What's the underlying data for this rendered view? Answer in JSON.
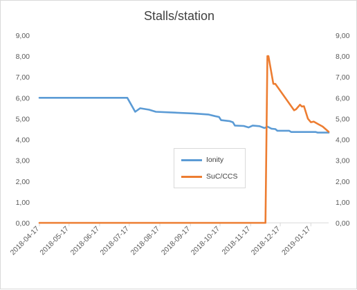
{
  "chart_data": {
    "type": "line",
    "title": "Stalls/station",
    "xlabel": "",
    "ylabel": "",
    "ylim": [
      0,
      9
    ],
    "y_ticks": [
      "0,00",
      "1,00",
      "2,00",
      "3,00",
      "4,00",
      "5,00",
      "6,00",
      "7,00",
      "8,00",
      "9,00"
    ],
    "x_tick_labels": [
      "2018-04-17",
      "2018-05-17",
      "2018-06-17",
      "2018-07-17",
      "2018-08-17",
      "2018-09-17",
      "2018-10-17",
      "2018-11-17",
      "2018-12-17",
      "2019-01-17"
    ],
    "x_range": [
      "2018-04-17",
      "2019-02-04"
    ],
    "grid": false,
    "legend_position": "center-right",
    "series": [
      {
        "name": "Ionity",
        "color": "#5b9bd5",
        "points": [
          [
            "2018-04-17",
            6.0
          ],
          [
            "2018-07-15",
            6.0
          ],
          [
            "2018-07-23",
            5.33
          ],
          [
            "2018-07-28",
            5.5
          ],
          [
            "2018-08-06",
            5.43
          ],
          [
            "2018-08-13",
            5.33
          ],
          [
            "2018-09-01",
            5.29
          ],
          [
            "2018-09-20",
            5.25
          ],
          [
            "2018-10-05",
            5.2
          ],
          [
            "2018-10-12",
            5.12
          ],
          [
            "2018-10-16",
            5.08
          ],
          [
            "2018-10-18",
            4.93
          ],
          [
            "2018-10-27",
            4.88
          ],
          [
            "2018-10-30",
            4.83
          ],
          [
            "2018-11-01",
            4.67
          ],
          [
            "2018-11-10",
            4.65
          ],
          [
            "2018-11-15",
            4.58
          ],
          [
            "2018-11-19",
            4.67
          ],
          [
            "2018-11-26",
            4.64
          ],
          [
            "2018-12-01",
            4.55
          ],
          [
            "2018-12-04",
            4.62
          ],
          [
            "2018-12-08",
            4.52
          ],
          [
            "2018-12-12",
            4.5
          ],
          [
            "2018-12-14",
            4.42
          ],
          [
            "2018-12-26",
            4.42
          ],
          [
            "2018-12-28",
            4.36
          ],
          [
            "2019-01-22",
            4.36
          ],
          [
            "2019-01-24",
            4.33
          ],
          [
            "2019-02-04",
            4.33
          ]
        ]
      },
      {
        "name": "SuC/CCS",
        "color": "#ed7d31",
        "points": [
          [
            "2018-04-17",
            0.0
          ],
          [
            "2018-12-02",
            0.0
          ],
          [
            "2018-12-04",
            8.0
          ],
          [
            "2018-12-05",
            8.0
          ],
          [
            "2018-12-10",
            6.67
          ],
          [
            "2018-12-12",
            6.67
          ],
          [
            "2018-12-31",
            5.4
          ],
          [
            "2019-01-02",
            5.45
          ],
          [
            "2019-01-06",
            5.67
          ],
          [
            "2019-01-08",
            5.58
          ],
          [
            "2019-01-10",
            5.6
          ],
          [
            "2019-01-14",
            5.0
          ],
          [
            "2019-01-17",
            4.83
          ],
          [
            "2019-01-20",
            4.86
          ],
          [
            "2019-01-24",
            4.75
          ],
          [
            "2019-01-29",
            4.62
          ],
          [
            "2019-02-04",
            4.37
          ]
        ]
      }
    ]
  }
}
